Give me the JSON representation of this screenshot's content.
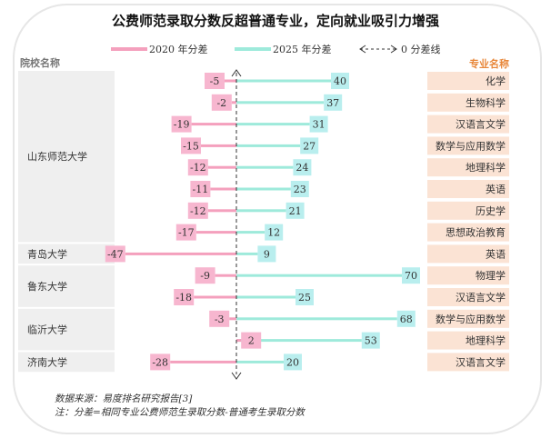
{
  "chart_data": {
    "type": "bar",
    "title": "公费师范录取分数反超普通专业，定向就业吸引力增强",
    "legend": {
      "series_2020": "2020 年分差",
      "series_2025": "2025 年分差",
      "zero_line": "0 分差线",
      "placement": "top"
    },
    "left_header": "院校名称",
    "right_header": "专业名称",
    "universities": [
      {
        "name": "山东师范大学",
        "rows": 8
      },
      {
        "name": "青岛大学",
        "rows": 1
      },
      {
        "name": "鲁东大学",
        "rows": 2
      },
      {
        "name": "临沂大学",
        "rows": 2
      },
      {
        "name": "济南大学",
        "rows": 1
      }
    ],
    "categories": [
      "化学",
      "生物科学",
      "汉语言文学",
      "数学与应用数学",
      "地理科学",
      "英语",
      "历史学",
      "思想政治教育",
      "英语",
      "物理学",
      "汉语言文学",
      "数学与应用数学",
      "地理科学",
      "汉语言文学"
    ],
    "series": [
      {
        "name": "2020 年分差",
        "color": "#f4a0bd",
        "values": [
          -5,
          -2,
          -19,
          -15,
          -12,
          -11,
          -12,
          -17,
          -47,
          -9,
          -18,
          -3,
          2,
          -28
        ]
      },
      {
        "name": "2025 年分差",
        "color": "#9eeadb",
        "values": [
          40,
          37,
          31,
          27,
          24,
          23,
          21,
          12,
          9,
          70,
          25,
          68,
          53,
          20
        ]
      }
    ],
    "source": "数据来源：易度排名研究报告[3]",
    "note": "注：分差=相同专业公费师范生录取分数-普通考生录取分数",
    "colors": {
      "label_pink": "#f7b6cf",
      "label_teal": "#b9eeee",
      "major_bg": "#fbe3d4",
      "uni_bg": "#efefef",
      "header_orange": "#e8873a"
    }
  }
}
